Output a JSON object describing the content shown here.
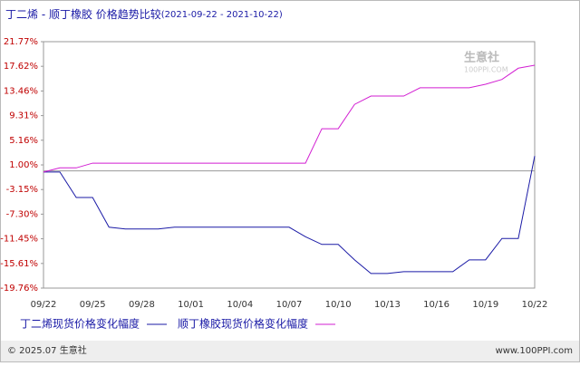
{
  "chart_data": {
    "type": "line",
    "title": "丁二烯 - 顺丁橡胶 价格趋势比较",
    "subtitle": "(2021-09-22 - 2021-10-22)",
    "categories": [
      "09/22",
      null,
      null,
      "09/25",
      null,
      null,
      "09/28",
      null,
      null,
      "10/01",
      null,
      null,
      "10/04",
      null,
      null,
      "10/07",
      null,
      null,
      "10/10",
      null,
      null,
      "10/13",
      null,
      null,
      "10/16",
      null,
      null,
      "10/19",
      null,
      null,
      "10/22"
    ],
    "series": [
      {
        "name": "丁二烯现货价格变化幅度",
        "color": "#1a1aa6",
        "values": [
          -0.2,
          -0.2,
          -4.5,
          -4.5,
          -9.5,
          -9.8,
          -9.8,
          -9.8,
          -9.5,
          -9.5,
          -9.5,
          -9.5,
          -9.5,
          -9.5,
          -9.5,
          -9.5,
          -11.1,
          -12.4,
          -12.4,
          -15.0,
          -17.3,
          -17.3,
          -17.0,
          -17.0,
          -17.0,
          -17.0,
          -15.0,
          -15.0,
          -11.4,
          -11.4,
          2.5
        ]
      },
      {
        "name": "顺丁橡胶现货价格变化幅度",
        "color": "#d21fd2",
        "values": [
          -0.2,
          0.5,
          0.5,
          1.3,
          1.3,
          1.3,
          1.3,
          1.3,
          1.3,
          1.3,
          1.3,
          1.3,
          1.3,
          1.3,
          1.3,
          1.3,
          1.3,
          7.1,
          7.1,
          11.2,
          12.6,
          12.6,
          12.6,
          14.0,
          14.0,
          14.0,
          14.0,
          14.6,
          15.4,
          17.3,
          17.8
        ]
      }
    ],
    "ylim": [
      -19.76,
      21.77
    ],
    "yticks": [
      {
        "value": 21.77,
        "label": "21.77%"
      },
      {
        "value": 17.62,
        "label": "17.62%"
      },
      {
        "value": 13.46,
        "label": "13.46%"
      },
      {
        "value": 9.31,
        "label": "9.31%"
      },
      {
        "value": 5.16,
        "label": "5.16%"
      },
      {
        "value": 1,
        "label": "1.00%"
      },
      {
        "value": -3.15,
        "label": "-3.15%"
      },
      {
        "value": -7.3,
        "label": "-7.30%"
      },
      {
        "value": -11.45,
        "label": "-11.45%"
      },
      {
        "value": -15.61,
        "label": "-15.61%"
      },
      {
        "value": -19.76,
        "label": "-19.76%"
      }
    ],
    "grid": false,
    "watermark": {
      "text": "生意社",
      "subtext": "100PPI.COM"
    },
    "footer": {
      "left": "© 2025.07 生意社",
      "right": "www.100PPI.com"
    }
  }
}
